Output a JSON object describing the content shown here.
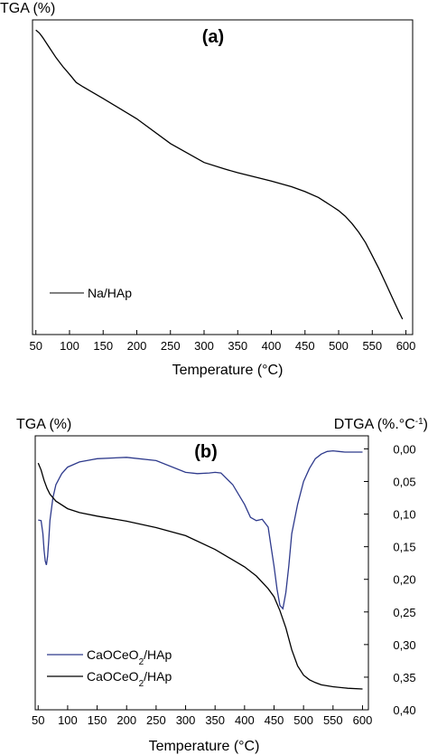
{
  "chart_data": [
    {
      "type": "line",
      "panel_label": "(a)",
      "ylabel": "TGA (%)",
      "xlabel": "Temperature (°C)",
      "xlim": [
        45,
        610
      ],
      "xticks": [
        50,
        100,
        150,
        200,
        250,
        300,
        350,
        400,
        450,
        500,
        550,
        600
      ],
      "ylim": [
        0,
        1
      ],
      "yticks_shown": false,
      "legend_position": "bottom-left",
      "series": [
        {
          "name": "Na/HAp",
          "color": "#000000",
          "x": [
            50,
            55,
            60,
            70,
            80,
            90,
            100,
            110,
            120,
            150,
            200,
            250,
            300,
            330,
            350,
            400,
            430,
            450,
            470,
            480,
            490,
            500,
            510,
            520,
            530,
            540,
            550,
            560,
            570,
            580,
            590,
            595
          ],
          "y": [
            0.99,
            0.98,
            0.965,
            0.93,
            0.895,
            0.865,
            0.838,
            0.81,
            0.795,
            0.755,
            0.685,
            0.6,
            0.535,
            0.513,
            0.5,
            0.471,
            0.452,
            0.435,
            0.415,
            0.4,
            0.385,
            0.37,
            0.35,
            0.325,
            0.295,
            0.26,
            0.215,
            0.17,
            0.12,
            0.07,
            0.02,
            -0.003
          ]
        }
      ]
    },
    {
      "type": "line",
      "panel_label": "(b)",
      "ylabel": "TGA (%)",
      "y2label": "DTGA (%.°C⁻¹)",
      "xlabel": "Temperature (°C)",
      "xlim": [
        45,
        610
      ],
      "xticks": [
        50,
        100,
        150,
        200,
        250,
        300,
        350,
        400,
        450,
        500,
        550,
        600
      ],
      "ylim_right": [
        0.4,
        -0.02
      ],
      "yticks_right": [
        "0,00",
        "0,05",
        "0,10",
        "0,15",
        "0,20",
        "0,25",
        "0,30",
        "0,35",
        "0,40"
      ],
      "legend_position": "bottom-left",
      "series": [
        {
          "name": "CaOCeO2/HAp",
          "axis": "right",
          "color": "#2e3a8c",
          "x": [
            50,
            55,
            58,
            60,
            62,
            64,
            66,
            68,
            70,
            75,
            80,
            90,
            100,
            120,
            150,
            200,
            250,
            300,
            320,
            340,
            350,
            360,
            380,
            400,
            410,
            420,
            430,
            440,
            445,
            450,
            455,
            460,
            465,
            470,
            475,
            480,
            490,
            500,
            510,
            520,
            530,
            540,
            550,
            560,
            570,
            580,
            590,
            600
          ],
          "y": [
            0.109,
            0.11,
            0.13,
            0.155,
            0.172,
            0.178,
            0.165,
            0.14,
            0.11,
            0.075,
            0.055,
            0.038,
            0.028,
            0.02,
            0.015,
            0.013,
            0.018,
            0.036,
            0.038,
            0.037,
            0.036,
            0.037,
            0.055,
            0.085,
            0.105,
            0.11,
            0.108,
            0.12,
            0.15,
            0.18,
            0.215,
            0.24,
            0.245,
            0.22,
            0.18,
            0.13,
            0.085,
            0.05,
            0.03,
            0.015,
            0.008,
            0.004,
            0.003,
            0.004,
            0.005,
            0.005,
            0.005,
            0.005
          ]
        },
        {
          "name": "CaOCeO2/HAp",
          "axis": "left",
          "color": "#000000",
          "x": [
            50,
            55,
            60,
            65,
            70,
            80,
            100,
            120,
            150,
            200,
            250,
            300,
            350,
            400,
            420,
            440,
            450,
            460,
            470,
            480,
            490,
            500,
            510,
            520,
            530,
            550,
            575,
            600
          ],
          "y": [
            0.98,
            0.95,
            0.905,
            0.87,
            0.845,
            0.815,
            0.782,
            0.765,
            0.75,
            0.728,
            0.7,
            0.665,
            0.605,
            0.53,
            0.49,
            0.435,
            0.4,
            0.34,
            0.265,
            0.17,
            0.1,
            0.06,
            0.04,
            0.028,
            0.018,
            0.01,
            0.003,
            0
          ]
        }
      ],
      "legend": [
        {
          "text": "CaOCeO",
          "sub": "2",
          "tail": "/HAp",
          "color": "#2e3a8c"
        },
        {
          "text": "CaOCeO",
          "sub": "2",
          "tail": "/HAp",
          "color": "#000000"
        }
      ]
    }
  ]
}
